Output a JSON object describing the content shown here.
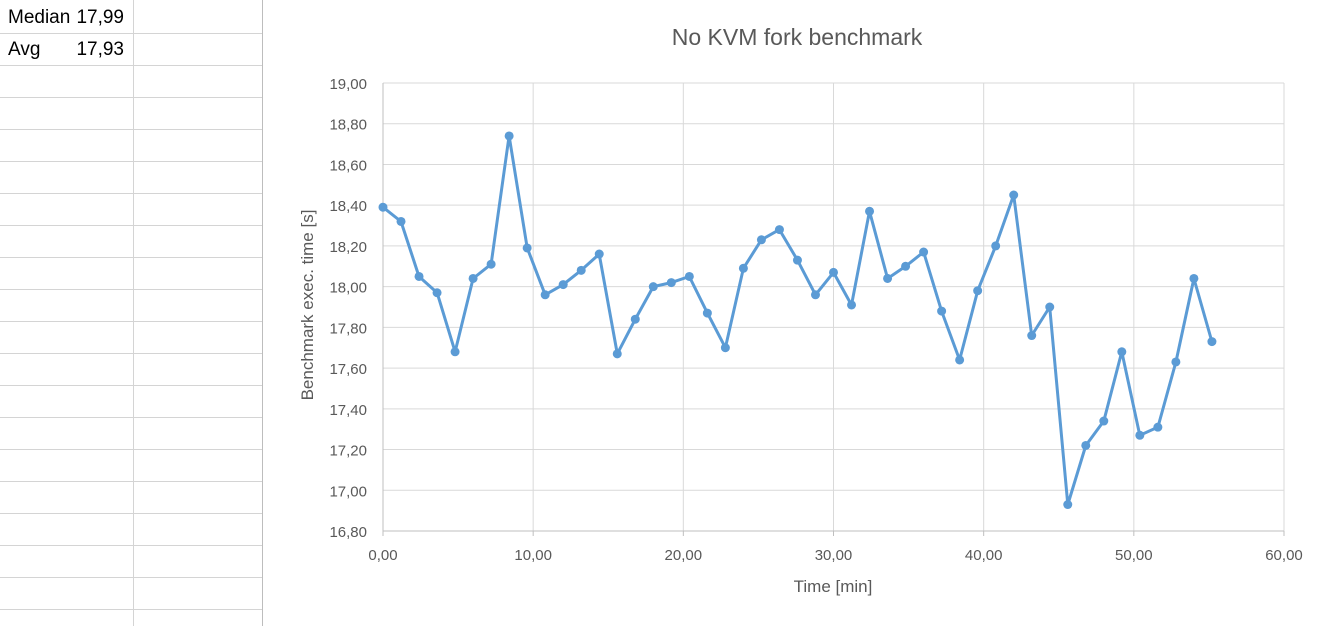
{
  "sheet": {
    "rows": [
      {
        "label": "Median",
        "value": "17,99"
      },
      {
        "label": "Avg",
        "value": "17,93"
      }
    ]
  },
  "chart_data": {
    "type": "line",
    "title": "No KVM fork benchmark",
    "xlabel": "Time [min]",
    "ylabel": "Benchmark exec. time [s]",
    "xlim": [
      0,
      60
    ],
    "ylim": [
      16.8,
      19.0
    ],
    "x_ticks": [
      "0,00",
      "10,00",
      "20,00",
      "30,00",
      "40,00",
      "50,00",
      "60,00"
    ],
    "y_ticks": [
      "16,80",
      "17,00",
      "17,20",
      "17,40",
      "17,60",
      "17,80",
      "18,00",
      "18,20",
      "18,40",
      "18,60",
      "18,80",
      "19,00"
    ],
    "grid": true,
    "line_color": "#5b9bd5",
    "series": [
      {
        "x": [
          0.0,
          1.2,
          2.4,
          3.6,
          4.8,
          6.0,
          7.2,
          8.4,
          9.6,
          10.8,
          12.0,
          13.2,
          14.4,
          15.6,
          16.8,
          18.0,
          19.2,
          20.4,
          21.6,
          22.8,
          24.0,
          25.2,
          26.4,
          27.6,
          28.8,
          30.0,
          31.2,
          32.4,
          33.6,
          34.8,
          36.0,
          37.2,
          38.4,
          39.6,
          40.8,
          42.0,
          43.2,
          44.4,
          45.6,
          46.8,
          48.0,
          49.2,
          50.4,
          51.6,
          52.8,
          54.0,
          55.2
        ],
        "values": [
          18.39,
          18.32,
          18.05,
          17.97,
          17.68,
          18.04,
          18.11,
          18.74,
          18.19,
          17.96,
          18.01,
          18.08,
          18.16,
          17.67,
          17.84,
          18.0,
          18.02,
          18.05,
          17.87,
          17.7,
          18.09,
          18.23,
          18.28,
          18.13,
          17.96,
          18.07,
          17.91,
          18.37,
          18.04,
          18.1,
          18.17,
          17.88,
          17.64,
          17.98,
          18.2,
          18.45,
          17.76,
          17.9,
          16.93,
          17.22,
          17.34,
          17.68,
          17.27,
          17.31,
          17.63,
          18.04,
          17.73
        ]
      }
    ]
  }
}
